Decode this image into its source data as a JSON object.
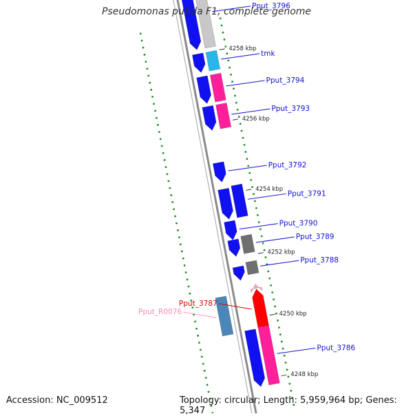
{
  "title": "Pseudomonas putida F1, complete genome",
  "footer": {
    "accession": "Accession: NC_009512",
    "summary": "Topology: circular; Length: 5,959,964 bp; Genes: 5,347"
  },
  "colors": {
    "cds_forward": "#1010f0",
    "cds_reverse": "#0000c8",
    "backbone": "#909090",
    "light_gray": "#c8c8c8",
    "cyan": "#29b6e8",
    "pink": "#ff1f9a",
    "dark_gray": "#6f6f6f",
    "steel_blue": "#4a86b8",
    "red": "#ff0000",
    "light_pink": "#ffa0c0",
    "gc_ticks": "#1e8c1e",
    "label_blue": "#1010d0",
    "label_red": "#e00000",
    "label_pink": "#ff8aaa"
  },
  "ticks": [
    {
      "label": "4258 kbp",
      "t": 0.135
    },
    {
      "label": "4256 kbp",
      "t": 0.305
    },
    {
      "label": "4254 kbp",
      "t": 0.475
    },
    {
      "label": "4252 kbp",
      "t": 0.628
    },
    {
      "label": "4250 kbp",
      "t": 0.777
    },
    {
      "label": "4248 kbp",
      "t": 0.924
    }
  ],
  "genes": [
    {
      "label": "Pput_3796",
      "lane": 0,
      "t0": -0.04,
      "t1": 0.125,
      "color": "cds_forward",
      "arrow": "down",
      "label_color": "label_blue"
    },
    {
      "label": "Pput_3796",
      "lane": 1,
      "t0": -0.04,
      "t1": 0.125,
      "color": "light_gray",
      "arrow": "none",
      "label_color": "label_blue",
      "show_label": true
    },
    {
      "label": "tmk",
      "lane": 0,
      "t0": 0.135,
      "t1": 0.18,
      "color": "cds_forward",
      "arrow": "down"
    },
    {
      "label": "tmk",
      "lane": 1,
      "t0": 0.135,
      "t1": 0.18,
      "color": "cyan",
      "arrow": "none",
      "label_color": "label_blue",
      "show_label": true
    },
    {
      "label": "Pput_3794",
      "lane": 0,
      "t0": 0.19,
      "t1": 0.255,
      "color": "cds_forward",
      "arrow": "down"
    },
    {
      "label": "Pput_3794",
      "lane": 1,
      "t0": 0.19,
      "t1": 0.255,
      "color": "pink",
      "arrow": "none",
      "label_color": "label_blue",
      "show_label": true
    },
    {
      "label": "Pput_3793",
      "lane": 0,
      "t0": 0.262,
      "t1": 0.32,
      "color": "cds_forward",
      "arrow": "down"
    },
    {
      "label": "Pput_3793",
      "lane": 1,
      "t0": 0.262,
      "t1": 0.32,
      "color": "pink",
      "arrow": "none",
      "label_color": "label_blue",
      "show_label": true
    },
    {
      "label": "Pput_3792",
      "lane": 0,
      "t0": 0.398,
      "t1": 0.445,
      "color": "cds_forward",
      "arrow": "down",
      "label_color": "label_blue",
      "show_label": true
    },
    {
      "label": "Pput_3791",
      "lane": 0,
      "t0": 0.462,
      "t1": 0.535,
      "color": "cds_forward",
      "arrow": "down"
    },
    {
      "label": "Pput_3791",
      "lane": 1,
      "t0": 0.458,
      "t1": 0.535,
      "color": "cds_forward",
      "arrow": "none",
      "label_color": "label_blue",
      "show_label": true
    },
    {
      "label": "Pput_3790",
      "lane": 0,
      "t0": 0.54,
      "t1": 0.585,
      "color": "cds_forward",
      "arrow": "down",
      "label_color": "label_blue",
      "show_label": true
    },
    {
      "label": "Pput_3789",
      "lane": 0,
      "t0": 0.585,
      "t1": 0.625,
      "color": "cds_forward",
      "arrow": "down"
    },
    {
      "label": "Pput_3789",
      "lane": 1,
      "t0": 0.58,
      "t1": 0.622,
      "color": "dark_gray",
      "arrow": "none",
      "label_color": "label_blue",
      "show_label": true
    },
    {
      "label": "Pput_3788",
      "lane": 0,
      "t0": 0.65,
      "t1": 0.683,
      "color": "cds_forward",
      "arrow": "down"
    },
    {
      "label": "Pput_3788",
      "lane": 1,
      "t0": 0.643,
      "t1": 0.673,
      "color": "dark_gray",
      "arrow": "none",
      "label_color": "label_blue",
      "show_label": true
    },
    {
      "label": "Pput_R0076",
      "lane": 1,
      "t0": 0.698,
      "t1": 0.708,
      "color": "light_pink",
      "arrow": "up"
    },
    {
      "label": "Pput_R0076",
      "lane": -1,
      "t0": 0.713,
      "t1": 0.805,
      "color": "steel_blue",
      "arrow": "none",
      "label_color": "label_pink",
      "show_label": true,
      "label_side": "left"
    },
    {
      "label": "Pput_3787",
      "lane": 1,
      "t0": 0.71,
      "t1": 0.8,
      "color": "red",
      "arrow": "up",
      "label_color": "label_red",
      "show_label": true,
      "label_side": "left"
    },
    {
      "label": "Pput_3786",
      "lane": 0,
      "t0": 0.803,
      "t1": 0.94,
      "color": "cds_forward",
      "arrow": "down"
    },
    {
      "label": "Pput_3786",
      "lane": 1,
      "t0": 0.8,
      "t1": 0.94,
      "color": "pink",
      "arrow": "none",
      "label_color": "label_blue",
      "show_label": true
    }
  ]
}
